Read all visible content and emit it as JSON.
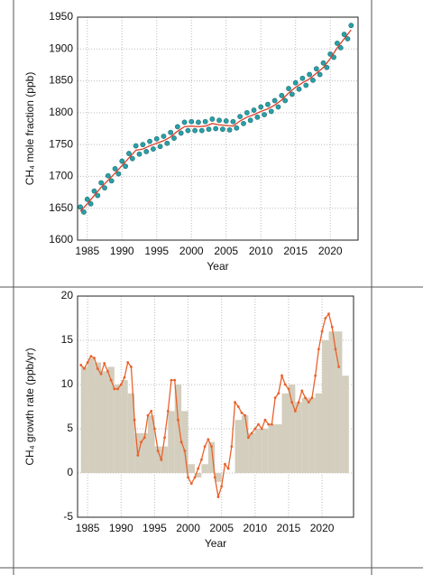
{
  "chart_data": [
    {
      "type": "line",
      "xlabel": "Year",
      "ylabel": "CH₄ mole fraction (ppb)",
      "xlim": [
        1983.6,
        2024
      ],
      "xticks": [
        1985,
        1990,
        1995,
        2000,
        2005,
        2010,
        2015,
        2020
      ],
      "ylim": [
        1600,
        1950
      ],
      "yticks": [
        1600,
        1650,
        1700,
        1750,
        1800,
        1850,
        1900,
        1950
      ],
      "grid": true,
      "series": [
        {
          "type": "scatter",
          "color": "#2a9fa6",
          "x": [
            1984,
            1984.5,
            1985,
            1985.5,
            1986,
            1986.5,
            1987,
            1987.5,
            1988,
            1988.5,
            1989,
            1989.5,
            1990,
            1990.5,
            1991,
            1991.5,
            1992,
            1992.5,
            1993,
            1993.5,
            1994,
            1994.5,
            1995,
            1995.5,
            1996,
            1996.5,
            1997,
            1997.5,
            1998,
            1998.5,
            1999,
            1999.5,
            2000,
            2000.5,
            2001,
            2001.5,
            2002,
            2002.5,
            2003,
            2003.5,
            2004,
            2004.5,
            2005,
            2005.5,
            2006,
            2006.5,
            2007,
            2007.5,
            2008,
            2008.5,
            2009,
            2009.5,
            2010,
            2010.5,
            2011,
            2011.5,
            2012,
            2012.5,
            2013,
            2013.5,
            2014,
            2014.5,
            2015,
            2015.5,
            2016,
            2016.5,
            2017,
            2017.5,
            2018,
            2018.5,
            2019,
            2019.5,
            2020,
            2020.5,
            2021,
            2021.5,
            2022,
            2022.5,
            2023
          ],
          "values": [
            1652,
            1644,
            1664,
            1657,
            1677,
            1670,
            1690,
            1682,
            1701,
            1693,
            1712,
            1704,
            1724,
            1716,
            1736,
            1728,
            1748,
            1735,
            1750,
            1739,
            1755,
            1743,
            1759,
            1747,
            1763,
            1752,
            1769,
            1760,
            1778,
            1768,
            1785,
            1772,
            1786,
            1772,
            1785,
            1772,
            1786,
            1774,
            1790,
            1775,
            1788,
            1774,
            1787,
            1773,
            1786,
            1776,
            1794,
            1783,
            1800,
            1788,
            1804,
            1793,
            1809,
            1797,
            1813,
            1802,
            1819,
            1809,
            1827,
            1819,
            1838,
            1829,
            1847,
            1837,
            1854,
            1843,
            1860,
            1851,
            1869,
            1860,
            1878,
            1871,
            1892,
            1887,
            1909,
            1902,
            1923,
            1916,
            1937
          ]
        },
        {
          "type": "line",
          "color": "#d9402b",
          "x": [
            1984,
            1985,
            1986,
            1987,
            1988,
            1989,
            1990,
            1991,
            1992,
            1993,
            1994,
            1995,
            1996,
            1997,
            1998,
            1999,
            2000,
            2001,
            2002,
            2003,
            2004,
            2005,
            2006,
            2007,
            2008,
            2009,
            2010,
            2011,
            2012,
            2013,
            2014,
            2015,
            2016,
            2017,
            2018,
            2019,
            2020,
            2021,
            2022,
            2023
          ],
          "values": [
            1645,
            1657,
            1670,
            1683,
            1694,
            1705,
            1717,
            1729,
            1741,
            1743,
            1748,
            1752,
            1756,
            1762,
            1771,
            1778,
            1779,
            1778,
            1779,
            1783,
            1781,
            1780,
            1779,
            1787,
            1793,
            1797,
            1802,
            1806,
            1812,
            1820,
            1831,
            1840,
            1847,
            1853,
            1862,
            1871,
            1885,
            1902,
            1916,
            1930
          ]
        }
      ]
    },
    {
      "type": "line",
      "xlabel": "Year",
      "ylabel": "CH₄ growth rate (ppb/yr)",
      "xlim": [
        1983.5,
        2024.7
      ],
      "xticks": [
        1985,
        1990,
        1995,
        2000,
        2005,
        2010,
        2015,
        2020
      ],
      "ylim": [
        -5,
        20
      ],
      "yticks": [
        -5,
        0,
        5,
        10,
        15,
        20
      ],
      "grid": true,
      "series": [
        {
          "type": "bar",
          "color": "#d3cebd",
          "x": [
            1984,
            1985,
            1986,
            1987,
            1988,
            1989,
            1990,
            1991,
            1992,
            1993,
            1994,
            1995,
            1996,
            1997,
            1998,
            1999,
            2000,
            2001,
            2002,
            2003,
            2004,
            2005,
            2006,
            2007,
            2008,
            2009,
            2010,
            2011,
            2012,
            2013,
            2014,
            2015,
            2016,
            2017,
            2018,
            2019,
            2020,
            2021,
            2022,
            2023
          ],
          "values": [
            12,
            13,
            12.5,
            11.5,
            12,
            10,
            10.5,
            9,
            4.5,
            4.5,
            6.5,
            3,
            3,
            7,
            10,
            7,
            1,
            -0.5,
            1,
            3.5,
            -1,
            0,
            0,
            6,
            6.5,
            4.5,
            5,
            5,
            5.5,
            5.5,
            9,
            10,
            8,
            8.5,
            8.5,
            9,
            15,
            16,
            16,
            11
          ]
        },
        {
          "type": "line",
          "color": "#e8622c",
          "x": [
            1984,
            1984.5,
            1985,
            1985.5,
            1986,
            1986.5,
            1987,
            1987.5,
            1988,
            1988.5,
            1989,
            1989.5,
            1990,
            1990.5,
            1991,
            1991.5,
            1992,
            1992.5,
            1993,
            1993.5,
            1994,
            1994.5,
            1995,
            1995.5,
            1996,
            1996.5,
            1997,
            1997.5,
            1998,
            1998.5,
            1999,
            1999.5,
            2000,
            2000.5,
            2001,
            2001.5,
            2002,
            2002.5,
            2003,
            2003.5,
            2004,
            2004.5,
            2005,
            2005.5,
            2006,
            2006.5,
            2007,
            2007.5,
            2008,
            2008.5,
            2009,
            2009.5,
            2010,
            2010.5,
            2011,
            2011.5,
            2012,
            2012.5,
            2013,
            2013.5,
            2014,
            2014.5,
            2015,
            2015.5,
            2016,
            2016.5,
            2017,
            2017.5,
            2018,
            2018.5,
            2019,
            2019.5,
            2020,
            2020.5,
            2021,
            2021.5,
            2022,
            2022.5
          ],
          "values": [
            12.2,
            11.8,
            12.5,
            13.2,
            13,
            11.8,
            11.2,
            12.4,
            11.5,
            10.5,
            9.5,
            9.5,
            10,
            10.8,
            12.5,
            12,
            6,
            2,
            3.5,
            4,
            6.5,
            7,
            5,
            2.5,
            1.5,
            4,
            7,
            10.5,
            10.5,
            6,
            3.5,
            2.5,
            -0.5,
            -1.2,
            -0.5,
            0.5,
            1.5,
            3,
            3.8,
            3,
            -0.5,
            -2.7,
            -1.5,
            1,
            0.5,
            3,
            8,
            7.5,
            6.8,
            6.5,
            4,
            4.5,
            5,
            5.5,
            5,
            6,
            5.5,
            5.5,
            8.5,
            9,
            11,
            10,
            9.5,
            8,
            7,
            8,
            9.3,
            8.5,
            8,
            8.5,
            11,
            14,
            16,
            17.5,
            18,
            16.5,
            14,
            12
          ]
        }
      ]
    }
  ]
}
